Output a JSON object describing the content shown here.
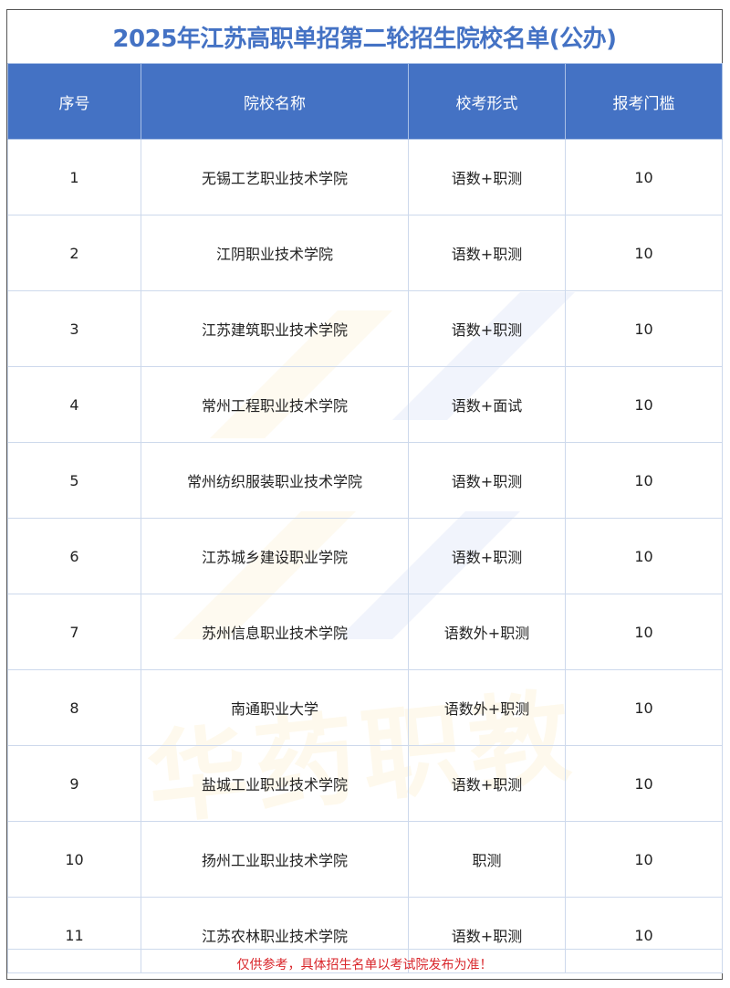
{
  "title": "2025年江苏高职单招第二轮招生院校名单(公办)",
  "columns": [
    "序号",
    "院校名称",
    "校考形式",
    "报考门槛"
  ],
  "rows": [
    [
      "1",
      "无锡工艺职业技术学院",
      "语数+职测",
      "10"
    ],
    [
      "2",
      "江阴职业技术学院",
      "语数+职测",
      "10"
    ],
    [
      "3",
      "江苏建筑职业技术学院",
      "语数+职测",
      "10"
    ],
    [
      "4",
      "常州工程职业技术学院",
      "语数+面试",
      "10"
    ],
    [
      "5",
      "常州纺织服装职业技术学院",
      "语数+职测",
      "10"
    ],
    [
      "6",
      "江苏城乡建设职业学院",
      "语数+职测",
      "10"
    ],
    [
      "7",
      "苏州信息职业技术学院",
      "语数外+职测",
      "10"
    ],
    [
      "8",
      "南通职业大学",
      "语数外+职测",
      "10"
    ],
    [
      "9",
      "盐城工业职业技术学院",
      "语数+职测",
      "10"
    ],
    [
      "10",
      "扬州工业职业技术学院",
      "职测",
      "10"
    ],
    [
      "11",
      "江苏农林职业技术学院",
      "语数+职测",
      "10"
    ]
  ],
  "footer_note": "仅供参考，具体招生名单以考试院发布为准！",
  "watermark": "华药职教",
  "colors": {
    "accent": "#4472c4",
    "warning": "#d9262b"
  }
}
